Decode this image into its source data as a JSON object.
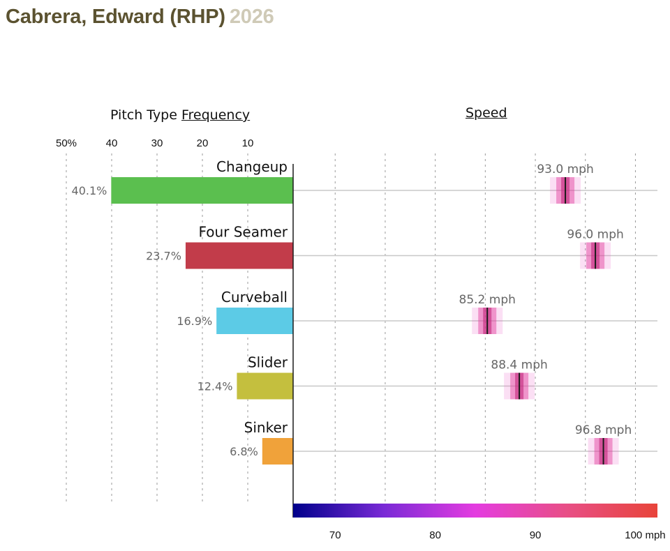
{
  "title": {
    "name": "Cabrera, Edward (RHP)",
    "year": "2026"
  },
  "headers": {
    "freq_prefix": "Pitch Type",
    "freq_link": "Frequency",
    "speed": "Speed"
  },
  "chart_data": {
    "type": "bar",
    "categories": [
      "Changeup",
      "Four Seamer",
      "Curveball",
      "Slider",
      "Sinker"
    ],
    "frequency": {
      "values": [
        40.1,
        23.7,
        16.9,
        12.4,
        6.8
      ],
      "labels": [
        "40.1%",
        "23.7%",
        "16.9%",
        "12.4%",
        "6.8%"
      ],
      "ticks": [
        50,
        40,
        30,
        20,
        10
      ],
      "tick_labels": [
        "50%",
        "40",
        "30",
        "20",
        "10"
      ],
      "xlim": [
        0,
        50
      ],
      "colors": [
        "#5bbf4f",
        "#c23c4a",
        "#5ccbe6",
        "#c4bf3e",
        "#f0a23a"
      ]
    },
    "speed": {
      "values": [
        93.0,
        96.0,
        85.2,
        88.4,
        96.8
      ],
      "labels": [
        "93.0 mph",
        "96.0 mph",
        "85.2 mph",
        "88.4 mph",
        "96.8 mph"
      ],
      "ticks": [
        70,
        80,
        90,
        100
      ],
      "tick_labels": [
        "70",
        "80",
        "90",
        "100 mph"
      ],
      "xlim": [
        65.8,
        102.2
      ],
      "gridlines": [
        70,
        75,
        80,
        85,
        90,
        95,
        100
      ],
      "colorscale": [
        "#00008b",
        "#7a2ad6",
        "#e43ce0",
        "#e84f86",
        "#e8443a"
      ]
    },
    "grid": true
  }
}
